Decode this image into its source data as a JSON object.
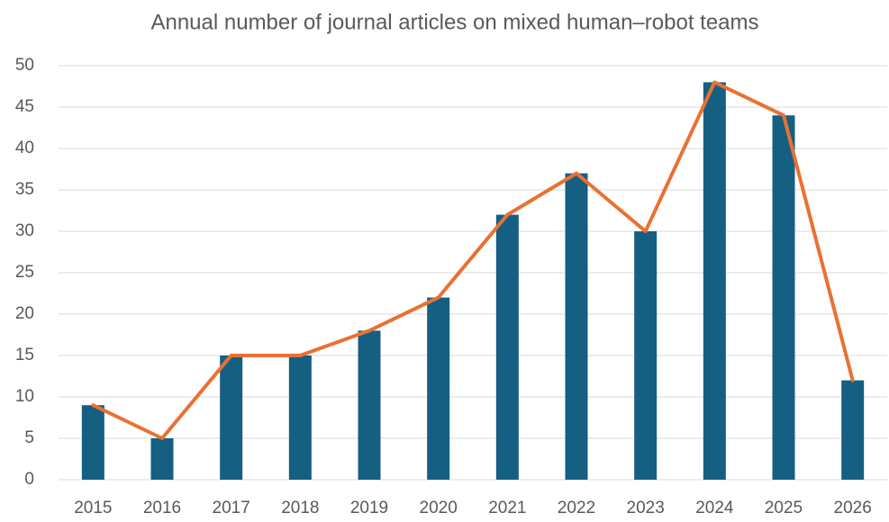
{
  "chart_data": {
    "type": "bar",
    "title": "Annual number of journal articles on mixed human–robot teams",
    "categories": [
      "2015",
      "2016",
      "2017",
      "2018",
      "2019",
      "2020",
      "2021",
      "2022",
      "2023",
      "2024",
      "2025",
      "2026"
    ],
    "series": [
      {
        "type": "bar",
        "color": "#155f82",
        "values": [
          9,
          5,
          15,
          15,
          18,
          22,
          32,
          37,
          30,
          48,
          44,
          12
        ]
      },
      {
        "type": "line",
        "color": "#e97132",
        "values": [
          9,
          5,
          15,
          15,
          18,
          22,
          32,
          37,
          30,
          48,
          44,
          12
        ]
      }
    ],
    "ylim": [
      0,
      50
    ],
    "yticks": [
      0,
      5,
      10,
      15,
      20,
      25,
      30,
      35,
      40,
      45,
      50
    ],
    "grid": true
  }
}
